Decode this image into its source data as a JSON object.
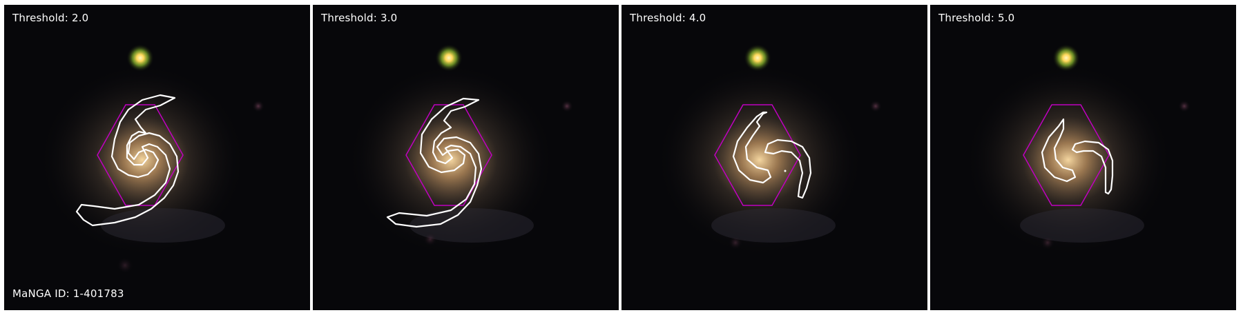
{
  "panels": [
    {
      "threshold_label": "Threshold: 2.0"
    },
    {
      "threshold_label": "Threshold: 3.0"
    },
    {
      "threshold_label": "Threshold: 4.0"
    },
    {
      "threshold_label": "Threshold: 5.0"
    }
  ],
  "galaxy_id_label": "MaNGA ID: 1-401783",
  "colors": {
    "background": "#07070a",
    "contour": "#ffffff",
    "hexagon": "#c000c0",
    "star_core": "#ffd75a",
    "star_halo": "#9acd32",
    "galaxy_core": "#e8b87a"
  }
}
